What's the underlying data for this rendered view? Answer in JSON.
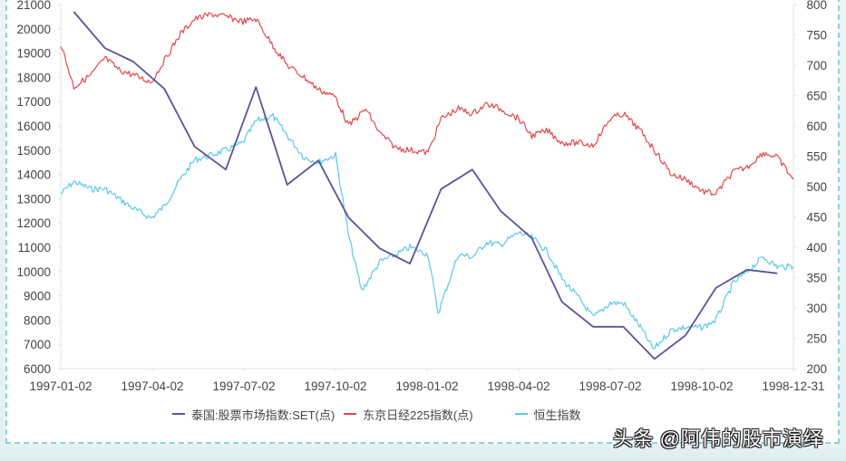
{
  "chart_data": {
    "type": "line",
    "title": "",
    "xlabel": "",
    "ylabel_left": "",
    "ylabel_right": "",
    "x_tick_labels": [
      "1997-01-02",
      "1997-04-02",
      "1997-07-02",
      "1997-10-02",
      "1998-01-02",
      "1998-04-02",
      "1998-07-02",
      "1998-10-02",
      "1998-12-31"
    ],
    "y_left": {
      "ticks": [
        21000,
        20000,
        19000,
        18000,
        17000,
        16000,
        15000,
        14000,
        13000,
        12000,
        11000,
        10000,
        9000,
        8000,
        7000,
        6000
      ],
      "range": [
        6000,
        21000
      ]
    },
    "y_right": {
      "ticks": [
        800,
        750,
        700,
        650,
        600,
        550,
        500,
        450,
        400,
        350,
        300,
        250,
        200
      ],
      "range": [
        200,
        800
      ]
    },
    "grid": false,
    "legend_position": "bottom",
    "series": [
      {
        "name": "泰国:股票市场指数:SET(点)",
        "axis": "right",
        "color": "#5a5496",
        "x": [
          "1997-01",
          "1997-02",
          "1997-03",
          "1997-04",
          "1997-05",
          "1997-06",
          "1997-07",
          "1997-08",
          "1997-09",
          "1997-10",
          "1997-11",
          "1997-12",
          "1998-01",
          "1998-02",
          "1998-03",
          "1998-04",
          "1998-05",
          "1998-06",
          "1998-07",
          "1998-08",
          "1998-09",
          "1998-10",
          "1998-11",
          "1998-12"
        ],
        "values": [
          788,
          728,
          706,
          661,
          566,
          528,
          664,
          503,
          543,
          449,
          398,
          373,
          496,
          528,
          460,
          415,
          310,
          269,
          269,
          216,
          255,
          333,
          363,
          357
        ]
      },
      {
        "name": "东京日经225指数(点)",
        "axis": "left",
        "color": "#e2474b",
        "x": [
          "1997-01-02",
          "1997-01-15",
          "1997-02-01",
          "1997-02-15",
          "1997-03-01",
          "1997-03-15",
          "1997-04-02",
          "1997-04-15",
          "1997-05-01",
          "1997-05-15",
          "1997-06-01",
          "1997-06-15",
          "1997-07-02",
          "1997-07-15",
          "1997-08-01",
          "1997-08-15",
          "1997-09-01",
          "1997-09-15",
          "1997-10-02",
          "1997-10-15",
          "1997-11-01",
          "1997-11-15",
          "1997-12-01",
          "1997-12-15",
          "1998-01-02",
          "1998-01-15",
          "1998-02-01",
          "1998-02-15",
          "1998-03-01",
          "1998-03-15",
          "1998-04-02",
          "1998-04-15",
          "1998-05-01",
          "1998-05-15",
          "1998-06-01",
          "1998-06-15",
          "1998-07-02",
          "1998-07-15",
          "1998-08-01",
          "1998-08-15",
          "1998-09-01",
          "1998-09-15",
          "1998-10-02",
          "1998-10-15",
          "1998-11-01",
          "1998-11-15",
          "1998-12-01",
          "1998-12-15",
          "1998-12-31"
        ],
        "values": [
          19400,
          17600,
          18100,
          18800,
          18300,
          18100,
          17800,
          18700,
          19800,
          20400,
          20600,
          20500,
          20300,
          20400,
          19300,
          18500,
          18000,
          17500,
          17200,
          16000,
          16700,
          15700,
          15100,
          15000,
          14900,
          16300,
          16700,
          16500,
          16900,
          16700,
          16300,
          15600,
          15800,
          15300,
          15300,
          15200,
          16300,
          16500,
          15800,
          15000,
          14000,
          13800,
          13300,
          13200,
          14100,
          14300,
          14900,
          14700,
          13800
        ]
      },
      {
        "name": "恒生指数",
        "axis": "left",
        "color": "#5bc8ea",
        "x": [
          "1997-01-02",
          "1997-01-15",
          "1997-02-01",
          "1997-02-15",
          "1997-03-01",
          "1997-03-15",
          "1997-04-02",
          "1997-04-15",
          "1997-05-01",
          "1997-05-15",
          "1997-06-01",
          "1997-06-15",
          "1997-07-02",
          "1997-07-15",
          "1997-08-01",
          "1997-08-15",
          "1997-09-01",
          "1997-09-15",
          "1997-10-02",
          "1997-10-15",
          "1997-10-28",
          "1997-11-15",
          "1997-12-01",
          "1997-12-15",
          "1998-01-02",
          "1998-01-12",
          "1998-02-01",
          "1998-02-15",
          "1998-03-01",
          "1998-03-15",
          "1998-04-02",
          "1998-04-15",
          "1998-05-01",
          "1998-05-15",
          "1998-06-01",
          "1998-06-15",
          "1998-07-02",
          "1998-07-15",
          "1998-08-01",
          "1998-08-14",
          "1998-09-01",
          "1998-09-15",
          "1998-10-02",
          "1998-10-15",
          "1998-11-01",
          "1998-11-15",
          "1998-12-01",
          "1998-12-15",
          "1998-12-31"
        ],
        "values": [
          13200,
          13700,
          13400,
          13400,
          13000,
          12600,
          12200,
          12700,
          13800,
          14600,
          14800,
          15000,
          15300,
          16200,
          16400,
          15600,
          14700,
          14500,
          14800,
          11500,
          9200,
          10400,
          10700,
          11000,
          10700,
          8300,
          10700,
          10600,
          11200,
          11100,
          11600,
          11400,
          10800,
          9700,
          8900,
          8100,
          8700,
          8700,
          7700,
          6800,
          7600,
          7700,
          7700,
          8000,
          9500,
          10000,
          10600,
          10200,
          10200
        ]
      }
    ]
  },
  "legend": {
    "items": [
      {
        "label": "泰国:股票市场指数:SET(点)",
        "color": "#5a5496"
      },
      {
        "label": "东京日经225指数(点)",
        "color": "#e2474b"
      },
      {
        "label": "恒生指数",
        "color": "#5bc8ea"
      }
    ]
  },
  "watermark": {
    "text": "头条 @阿伟的股市演绎"
  }
}
